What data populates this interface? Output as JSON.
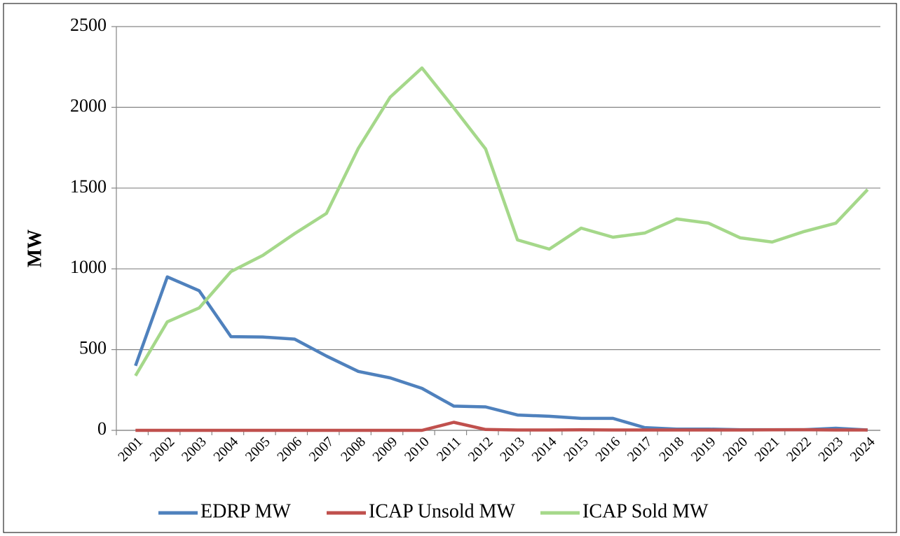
{
  "chart_data": {
    "type": "line",
    "y_label": "MW",
    "categories": [
      "2001",
      "2002",
      "2003",
      "2004",
      "2005",
      "2006",
      "2007",
      "2008",
      "2009",
      "2010",
      "2011",
      "2012",
      "2013",
      "2014",
      "2015",
      "2016",
      "2017",
      "2018",
      "2019",
      "2020",
      "2021",
      "2022",
      "2023",
      "2024"
    ],
    "series": [
      {
        "name": "EDRP MW",
        "color": "#4f81bd",
        "values": [
          400,
          950,
          865,
          580,
          578,
          565,
          460,
          365,
          325,
          260,
          150,
          145,
          95,
          87,
          74,
          74,
          17,
          8,
          8,
          4,
          4,
          4,
          13,
          2
        ]
      },
      {
        "name": "ICAP Unsold MW",
        "color": "#c0504d",
        "values": [
          0,
          0,
          0,
          0,
          0,
          0,
          0,
          0,
          0,
          0,
          50,
          5,
          2,
          2,
          3,
          2,
          2,
          2,
          2,
          2,
          3,
          4,
          2,
          2
        ]
      },
      {
        "name": "ICAP Sold MW",
        "color": "#a5d88a",
        "values": [
          338,
          672,
          758,
          983,
          1083,
          1218,
          1343,
          1746,
          2063,
          2244,
          1997,
          1742,
          1179,
          1122,
          1252,
          1196,
          1222,
          1309,
          1283,
          1192,
          1166,
          1231,
          1283,
          1491
        ]
      }
    ],
    "ylim": [
      0,
      2500
    ],
    "yticks": [
      0,
      500,
      1000,
      1500,
      2000,
      2500
    ],
    "grid": true,
    "legend": "bottom"
  }
}
